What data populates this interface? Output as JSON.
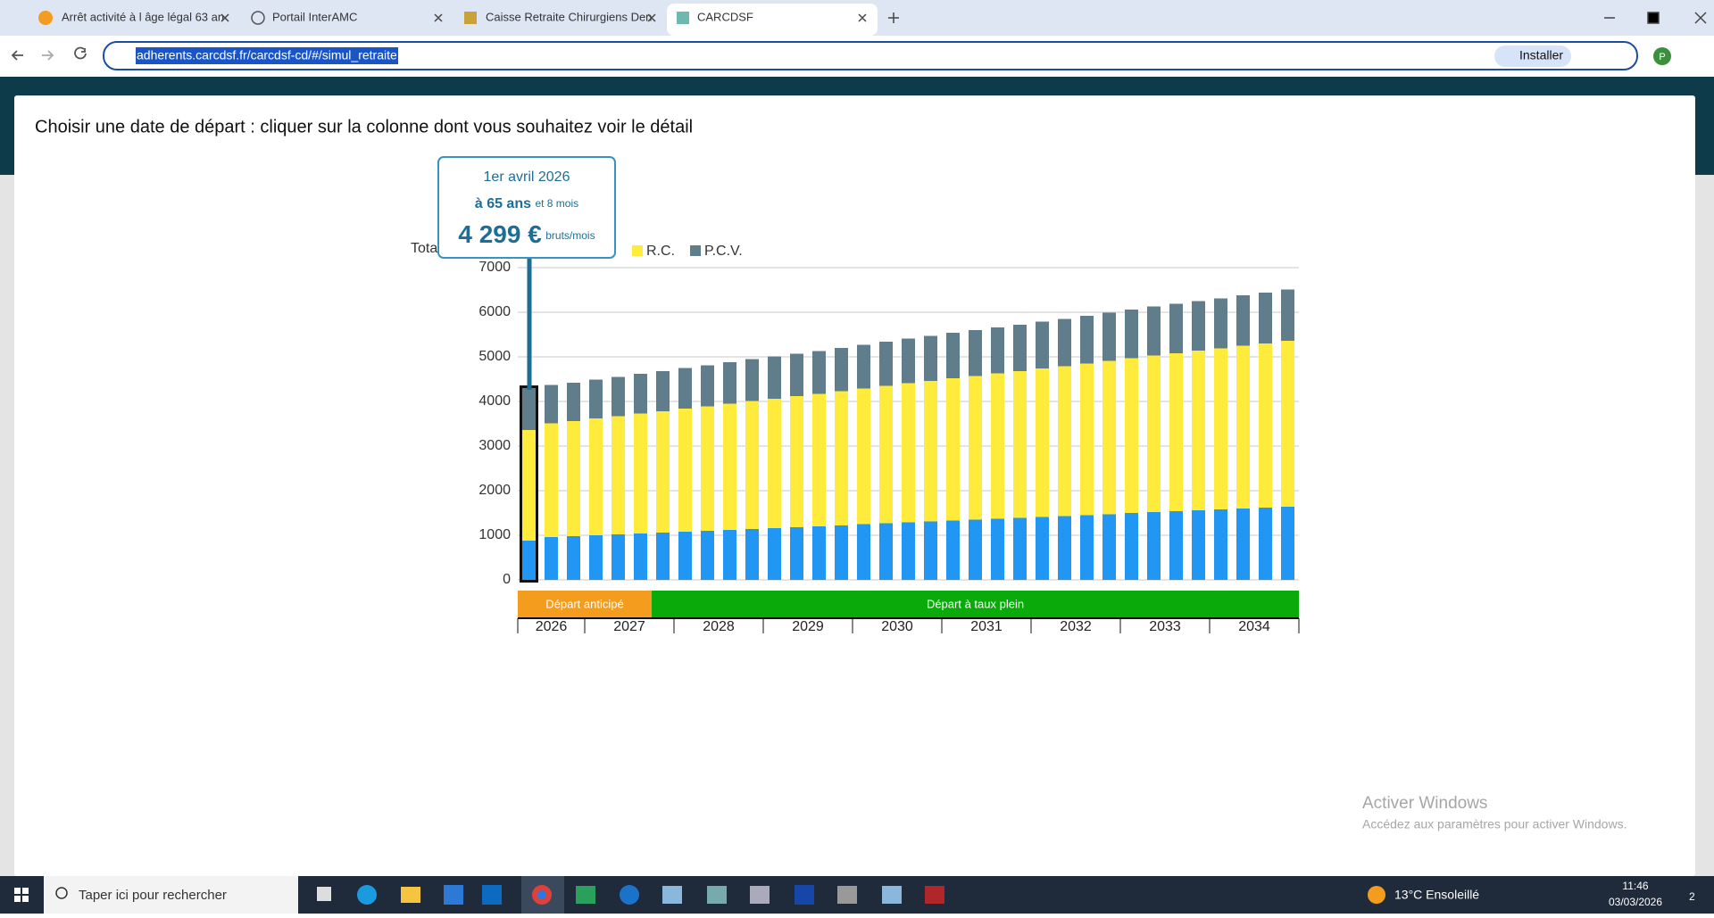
{
  "browser": {
    "tabs": [
      "Arrêt activité à l âge légal 63 an",
      "Portail InterAMC",
      "Caisse Retraite Chirurgiens Den",
      "CARCDSF"
    ],
    "url": "adherents.carcdsf.fr/carcdsf-cd/#/simul_retraite",
    "install": "Installer",
    "profile": "P"
  },
  "page": {
    "heading": "Choisir une date de départ : cliquer sur la colonne dont vous souhaitez voir le détail"
  },
  "chart_data": {
    "type": "bar",
    "stacked": true,
    "y_label": "Tota",
    "categories": [
      null,
      null,
      null,
      null,
      null,
      null,
      null,
      null,
      null,
      null,
      null,
      null,
      null,
      null,
      null,
      null,
      null,
      null,
      null,
      null,
      null,
      null,
      null,
      null,
      null,
      null,
      null,
      null,
      null,
      null,
      null,
      null,
      null,
      null,
      null
    ],
    "series": [
      {
        "color": "#2196f3",
        "values": [
          880,
          960,
          980,
          1000,
          1020,
          1040,
          1060,
          1080,
          1100,
          1120,
          1140,
          1160,
          1180,
          1200,
          1220,
          1250,
          1270,
          1290,
          1310,
          1330,
          1350,
          1370,
          1390,
          1410,
          1430,
          1450,
          1470,
          1500,
          1520,
          1540,
          1560,
          1580,
          1600,
          1620,
          1640
        ]
      },
      {
        "name": "R.C.",
        "color": "#ffeb3b",
        "values": [
          2480,
          2550,
          2580,
          2620,
          2650,
          2690,
          2720,
          2760,
          2790,
          2830,
          2870,
          2900,
          2940,
          2970,
          3010,
          3040,
          3080,
          3120,
          3150,
          3190,
          3220,
          3260,
          3290,
          3330,
          3360,
          3400,
          3440,
          3470,
          3510,
          3540,
          3580,
          3610,
          3650,
          3680,
          3720
        ]
      },
      {
        "name": "P.C.V.",
        "color": "#607d8b",
        "values": [
          939,
          860,
          860,
          870,
          880,
          890,
          900,
          910,
          920,
          930,
          940,
          950,
          950,
          960,
          970,
          980,
          990,
          1000,
          1010,
          1020,
          1030,
          1030,
          1040,
          1050,
          1060,
          1070,
          1080,
          1090,
          1100,
          1110,
          1110,
          1120,
          1130,
          1140,
          1150
        ]
      }
    ],
    "ylim": [
      0,
      7000
    ],
    "yticks": [
      0,
      1000,
      2000,
      3000,
      4000,
      5000,
      6000,
      7000
    ],
    "grid": true,
    "phases": [
      {
        "label": "Départ anticipé",
        "color": "#f39c1e"
      },
      {
        "label": "Départ à taux plein",
        "color": "#0aaa0a"
      }
    ],
    "years": [
      "2026",
      "2027",
      "2028",
      "2029",
      "2030",
      "2031",
      "2032",
      "2033",
      "2034"
    ],
    "tooltip": {
      "date": "1er avril 2026",
      "age": "à 65 ans",
      "age_detail": "et 8 mois",
      "total": "4 299 €",
      "unit": "bruts/mois"
    }
  },
  "windows": {
    "watermark_title": "Activer Windows",
    "watermark_text": "Accédez aux paramètres pour activer Windows.",
    "search": "Taper ici pour rechercher",
    "weather": "13°C  Ensoleillé",
    "time": "11:46",
    "date": "03/03/2026",
    "notifications": "2"
  }
}
